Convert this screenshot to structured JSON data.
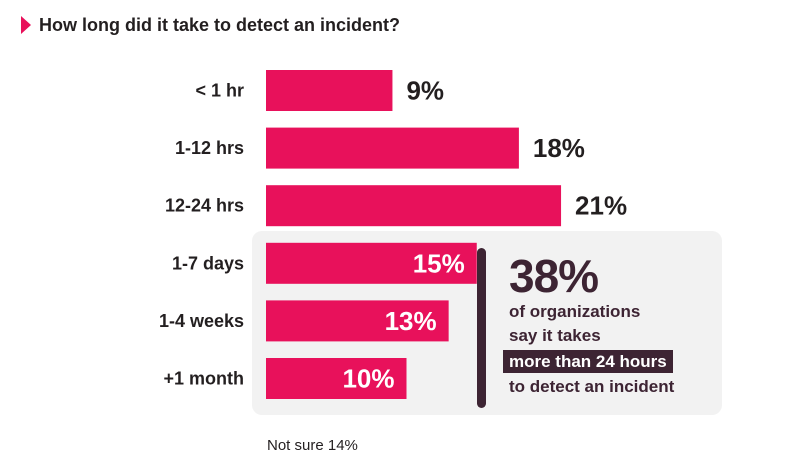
{
  "header": {
    "title": "How long did it take to detect an incident?"
  },
  "colors": {
    "bar": "#e8115b",
    "accent_dark": "#3d2433",
    "callout_bg": "#f2f2f2"
  },
  "chart_data": {
    "type": "bar",
    "orientation": "horizontal",
    "title": "How long did it take to detect an incident?",
    "categories": [
      "< 1 hr",
      "1-12 hrs",
      "12-24 hrs",
      "1-7 days",
      "1-4 weeks",
      "+1 month"
    ],
    "values": [
      9,
      18,
      21,
      15,
      13,
      10
    ],
    "data_labels": [
      "9%",
      "18%",
      "21%",
      "15%",
      "13%",
      "10%"
    ],
    "unit": "%",
    "xlim": [
      0,
      25
    ],
    "grid": false,
    "legend": "none"
  },
  "callout": {
    "big": "38%",
    "line1": "of organizations",
    "line2": "say it takes",
    "highlight": "more than 24 hours",
    "line4": "to detect an incident"
  },
  "footnote": "Not sure 14%"
}
